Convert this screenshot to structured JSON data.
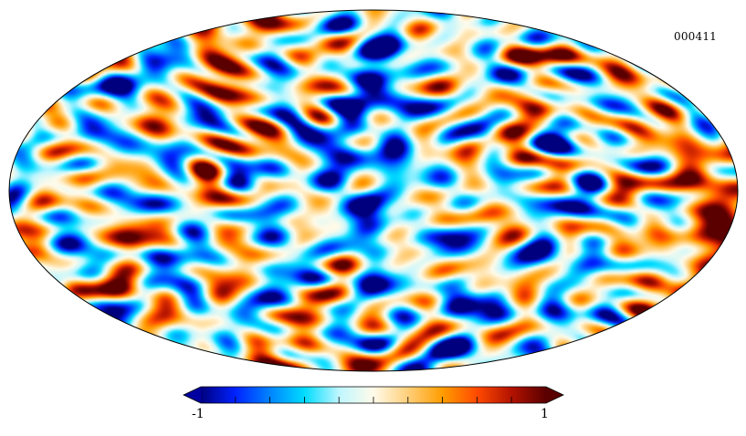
{
  "map": {
    "id_label": "000411",
    "projection": "mollweide",
    "field": "random-fluctuation-pattern"
  },
  "colorbar": {
    "min_label": "-1",
    "max_label": "1",
    "min_value": -1,
    "max_value": 1,
    "tick_count": 10,
    "extend": "both",
    "colors": [
      "#00007f",
      "#0022ff",
      "#0084ff",
      "#00dcff",
      "#bff6ff",
      "#fffbea",
      "#ffcf7a",
      "#ff9d00",
      "#ff4a00",
      "#b31200",
      "#5a0000"
    ],
    "under_color": "#0000a0",
    "over_color": "#5a0000"
  }
}
